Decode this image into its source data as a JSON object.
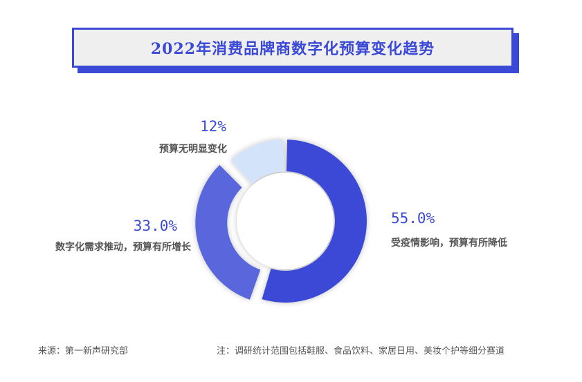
{
  "title": "2022年消费品牌商数字化预算变化趋势",
  "chart_data": {
    "type": "pie",
    "variant": "donut",
    "title": "2022年消费品牌商数字化预算变化趋势",
    "slices": [
      {
        "label": "受疫情影响，预算有所降低",
        "value": 55.0,
        "display": "55.0%",
        "color": "#3a49d6"
      },
      {
        "label": "数字化需求推动，预算有所增长",
        "value": 33.0,
        "display": "33.0%",
        "color": "#5a66dc"
      },
      {
        "label": "预算无明显变化",
        "value": 12,
        "display": "12%",
        "color": "#d3e4fa"
      }
    ]
  },
  "footer": {
    "source": "来源：第一新声研究部",
    "note": "注：调研统计范围包括鞋服、食品饮料、家居日用、美妆个护等细分赛道"
  }
}
